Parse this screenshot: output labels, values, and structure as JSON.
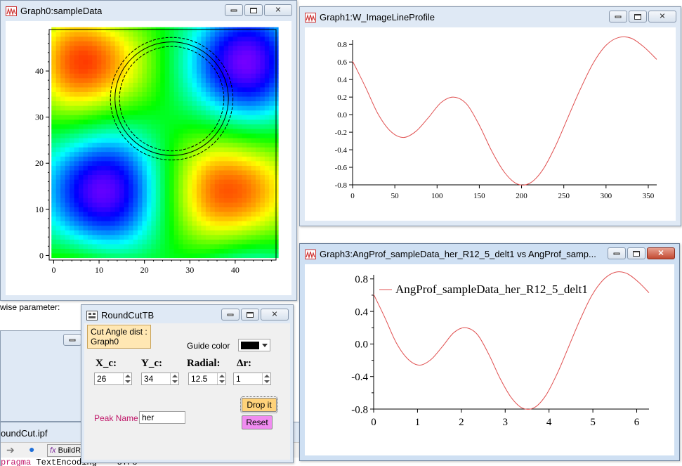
{
  "graph0": {
    "title": "Graph0:sampleData",
    "x_ticks": [
      "0",
      "10",
      "20",
      "30",
      "40"
    ],
    "y_ticks": [
      "0",
      "10",
      "20",
      "30",
      "40"
    ]
  },
  "graph1": {
    "title": "Graph1:W_ImageLineProfile",
    "x_ticks": [
      "0",
      "50",
      "100",
      "150",
      "200",
      "250",
      "300",
      "350"
    ],
    "y_ticks": [
      "-0.8",
      "-0.6",
      "-0.4",
      "-0.2",
      "0.0",
      "0.2",
      "0.4",
      "0.6",
      "0.8"
    ]
  },
  "graph3": {
    "title": "Graph3:AngProf_sampleData_her_R12_5_delt1 vs AngProf_samp...",
    "legend": "AngProf_sampleData_her_R12_5_delt1",
    "x_ticks": [
      "0",
      "1",
      "2",
      "3",
      "4",
      "5",
      "6"
    ],
    "y_ticks": [
      "-0.8",
      "-0.4",
      "0.0",
      "0.4",
      "0.8"
    ]
  },
  "chart_data": [
    {
      "type": "heatmap",
      "title": "",
      "xlabel": "",
      "ylabel": "",
      "xlim": [
        -1,
        49
      ],
      "ylim": [
        -1,
        49
      ],
      "colormap": "rainbow",
      "circle_center": [
        26,
        34
      ],
      "circle_radius": 12.5,
      "circle_delta_r": 1
    },
    {
      "type": "line",
      "title": "",
      "xlabel": "",
      "ylabel": "",
      "xlim": [
        0,
        360
      ],
      "ylim": [
        -0.8,
        0.85
      ],
      "series": [
        {
          "color": "#e05050",
          "x": [
            0,
            15,
            30,
            45,
            60,
            75,
            90,
            105,
            120,
            135,
            150,
            165,
            180,
            195,
            210,
            225,
            240,
            255,
            270,
            285,
            300,
            315,
            330,
            345,
            360
          ],
          "y": [
            0.61,
            0.32,
            0.01,
            -0.19,
            -0.26,
            -0.19,
            -0.03,
            0.14,
            0.2,
            0.12,
            -0.12,
            -0.42,
            -0.66,
            -0.79,
            -0.78,
            -0.63,
            -0.36,
            -0.03,
            0.3,
            0.59,
            0.79,
            0.88,
            0.87,
            0.77,
            0.63
          ]
        }
      ]
    },
    {
      "type": "line",
      "title": "",
      "xlabel": "",
      "ylabel": "",
      "xlim": [
        0,
        6.28
      ],
      "ylim": [
        -0.8,
        0.85
      ],
      "legend": "top-left",
      "series": [
        {
          "name": "AngProf_sampleData_her_R12_5_delt1",
          "color": "#e05050",
          "x": [
            0,
            0.26,
            0.52,
            0.79,
            1.05,
            1.31,
            1.57,
            1.83,
            2.09,
            2.36,
            2.62,
            2.88,
            3.14,
            3.4,
            3.67,
            3.93,
            4.19,
            4.45,
            4.71,
            4.97,
            5.24,
            5.5,
            5.76,
            6.02,
            6.28
          ],
          "y": [
            0.61,
            0.32,
            0.01,
            -0.19,
            -0.26,
            -0.19,
            -0.03,
            0.14,
            0.2,
            0.12,
            -0.12,
            -0.42,
            -0.66,
            -0.79,
            -0.78,
            -0.63,
            -0.36,
            -0.03,
            0.3,
            0.59,
            0.79,
            0.88,
            0.87,
            0.77,
            0.63
          ]
        }
      ]
    }
  ],
  "panel": {
    "title": "RoundCutTB",
    "tab_label_line1": "Cut Angle dist :",
    "tab_label_line2": "Graph0",
    "guide_color_label": "Guide color",
    "guide_color": "#000000",
    "xc_label": "X_c:",
    "yc_label": "Y_c:",
    "radial_label": "Radial:",
    "dr_label": "Δr:",
    "xc_value": "26",
    "yc_value": "34",
    "radial_value": "12.5",
    "dr_value": "1",
    "peak_name_label": "Peak Name",
    "peak_name_value": "her",
    "drop_button": "Drop it",
    "reset_button": "Reset"
  },
  "background": {
    "wise_text": "wise parameter:",
    "proc_title": "oundCut.ipf",
    "toolbar_button": "BuildR",
    "code_keyword": "pragma",
    "code_text": " TextEncoding = \"UTF8\""
  },
  "colors": {
    "trace": "#e05050",
    "drop_button": "#ffd27a",
    "reset_button": "#f08cf0",
    "peak_label": "#c0186a"
  }
}
